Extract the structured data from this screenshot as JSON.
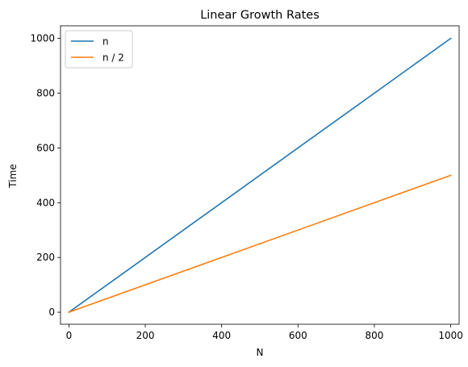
{
  "chart_data": {
    "type": "line",
    "title": "Linear Growth Rates",
    "xlabel": "N",
    "ylabel": "Time",
    "xlim": [
      -22,
      1022
    ],
    "ylim": [
      -44,
      1046
    ],
    "xticks": [
      0,
      200,
      400,
      600,
      800,
      1000
    ],
    "yticks": [
      0,
      200,
      400,
      600,
      800,
      1000
    ],
    "grid": false,
    "legend_position": "top-left",
    "series": [
      {
        "name": "n",
        "color": "#1f77b4",
        "x": [
          0,
          1000
        ],
        "y": [
          0,
          1000
        ]
      },
      {
        "name": "n / 2",
        "color": "#ff7f0e",
        "x": [
          0,
          1000
        ],
        "y": [
          0,
          500
        ]
      }
    ]
  }
}
